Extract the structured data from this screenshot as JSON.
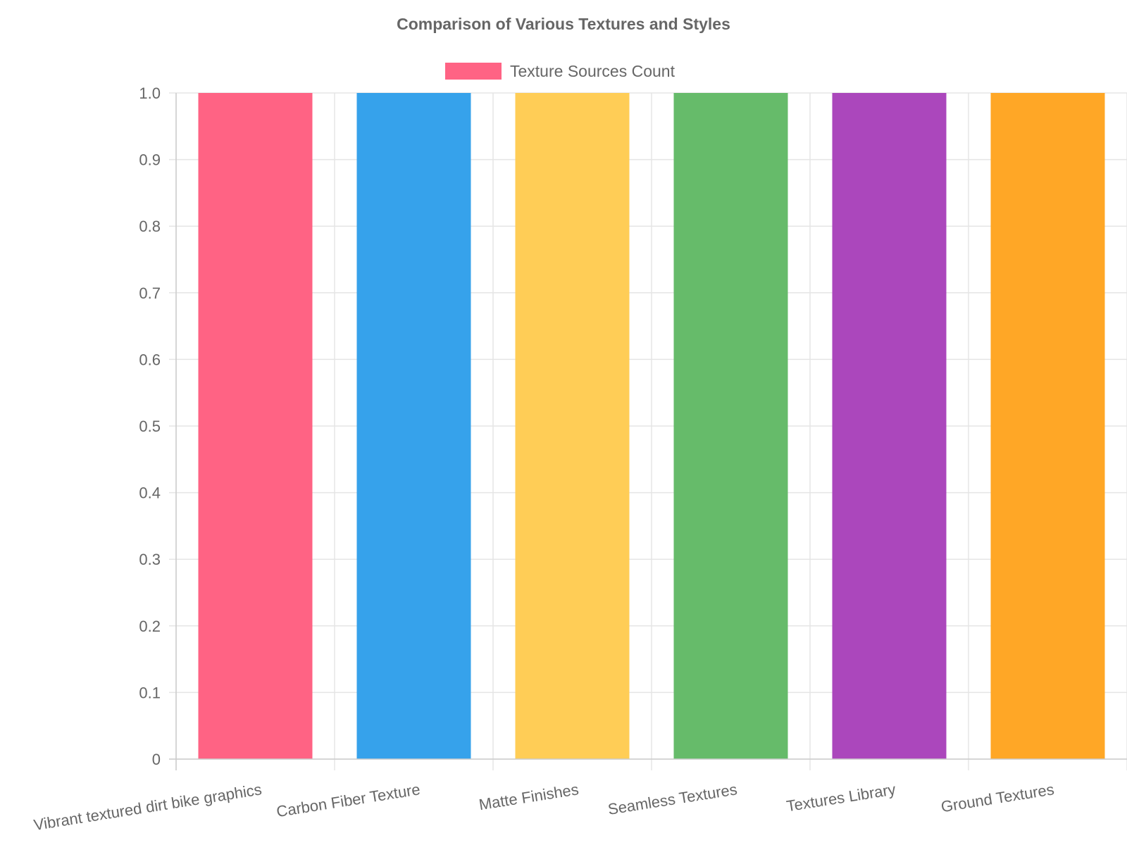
{
  "chart_data": {
    "type": "bar",
    "title": "Comparison of Various Textures and Styles",
    "categories": [
      "Vibrant textured dirt bike graphics",
      "Carbon Fiber Texture",
      "Matte Finishes",
      "Seamless Textures",
      "Textures Library",
      "Ground Textures"
    ],
    "series": [
      {
        "name": "Texture Sources Count",
        "values": [
          1,
          1,
          1,
          1,
          1,
          1
        ],
        "colors": [
          "#ff6384",
          "#36a2eb",
          "#ffcd56",
          "#66bb6a",
          "#ab47bc",
          "#ffa726"
        ]
      }
    ],
    "ylim": [
      0,
      1
    ],
    "yticks": [
      "0",
      "0.1",
      "0.2",
      "0.3",
      "0.4",
      "0.5",
      "0.6",
      "0.7",
      "0.8",
      "0.9",
      "1.0"
    ],
    "grid": true,
    "legend_position": "top"
  }
}
